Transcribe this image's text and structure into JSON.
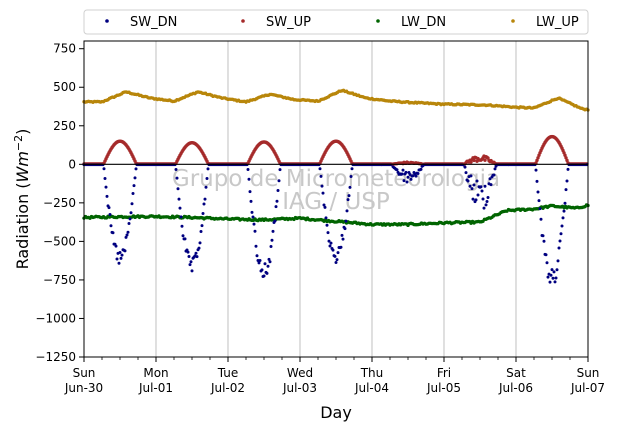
{
  "chart_data": {
    "type": "scatter",
    "title": "",
    "xlabel": "Day",
    "ylabel": "Radiation (Wm⁻²)",
    "ylabel_main": "Radiation (",
    "ylabel_unit": "Wm",
    "ylabel_exp": "−2",
    "ylabel_close": ")",
    "ylim": [
      -1250,
      800
    ],
    "xlim": [
      "2024-06-30",
      "2024-07-07"
    ],
    "yticks": [
      750,
      500,
      250,
      0,
      -250,
      -500,
      -750,
      -1000,
      -1250
    ],
    "ytick_labels": [
      "750",
      "500",
      "250",
      "0",
      "−250",
      "−500",
      "−750",
      "−1000",
      "−1250"
    ],
    "xticks": [
      {
        "day": "Sun",
        "date": "Jun-30"
      },
      {
        "day": "Mon",
        "date": "Jul-01"
      },
      {
        "day": "Tue",
        "date": "Jul-02"
      },
      {
        "day": "Wed",
        "date": "Jul-03"
      },
      {
        "day": "Thu",
        "date": "Jul-04"
      },
      {
        "day": "Fri",
        "date": "Jul-05"
      },
      {
        "day": "Sat",
        "date": "Jul-06"
      },
      {
        "day": "Sun",
        "date": "Jul-07"
      }
    ],
    "grid": "vertical",
    "legend": "top",
    "watermark": [
      "Grupo de Micrometeorologia",
      "IAG / USP"
    ],
    "series": [
      {
        "name": "SW_DN",
        "color": "#000080",
        "daily_min": [
          -660,
          -720,
          -760,
          -640,
          -120,
          -320,
          -800
        ],
        "daily_night": -2
      },
      {
        "name": "SW_UP",
        "color": "#a52a2a",
        "daily_max": [
          150,
          140,
          145,
          150,
          15,
          60,
          180
        ],
        "daily_night": 2
      },
      {
        "name": "LW_DN",
        "color": "#006400",
        "points": [
          [
            "2024-06-30 00:00",
            -345
          ],
          [
            "2024-06-30 12:00",
            -340
          ],
          [
            "2024-07-01 00:00",
            -338
          ],
          [
            "2024-07-01 12:00",
            -345
          ],
          [
            "2024-07-02 00:00",
            -355
          ],
          [
            "2024-07-02 12:00",
            -360
          ],
          [
            "2024-07-03 00:00",
            -350
          ],
          [
            "2024-07-03 12:00",
            -370
          ],
          [
            "2024-07-04 00:00",
            -390
          ],
          [
            "2024-07-04 12:00",
            -390
          ],
          [
            "2024-07-05 00:00",
            -380
          ],
          [
            "2024-07-05 12:00",
            -375
          ],
          [
            "2024-07-05 21:00",
            -300
          ],
          [
            "2024-07-06 06:00",
            -290
          ],
          [
            "2024-07-06 12:00",
            -270
          ],
          [
            "2024-07-06 20:00",
            -285
          ],
          [
            "2024-07-07 00:00",
            -265
          ]
        ]
      },
      {
        "name": "LW_UP",
        "color": "#b8860b",
        "points": [
          [
            "2024-06-30 00:00",
            405
          ],
          [
            "2024-06-30 06:00",
            405
          ],
          [
            "2024-06-30 14:00",
            470
          ],
          [
            "2024-06-30 22:00",
            430
          ],
          [
            "2024-07-01 06:00",
            410
          ],
          [
            "2024-07-01 14:00",
            470
          ],
          [
            "2024-07-01 22:00",
            430
          ],
          [
            "2024-07-02 06:00",
            405
          ],
          [
            "2024-07-02 14:00",
            455
          ],
          [
            "2024-07-02 22:00",
            420
          ],
          [
            "2024-07-03 06:00",
            410
          ],
          [
            "2024-07-03 14:00",
            480
          ],
          [
            "2024-07-03 22:00",
            430
          ],
          [
            "2024-07-04 06:00",
            410
          ],
          [
            "2024-07-04 14:00",
            400
          ],
          [
            "2024-07-05 00:00",
            390
          ],
          [
            "2024-07-05 14:00",
            385
          ],
          [
            "2024-07-06 00:00",
            370
          ],
          [
            "2024-07-06 06:00",
            365
          ],
          [
            "2024-07-06 14:00",
            430
          ],
          [
            "2024-07-06 22:00",
            360
          ],
          [
            "2024-07-07 00:00",
            355
          ]
        ]
      }
    ]
  }
}
